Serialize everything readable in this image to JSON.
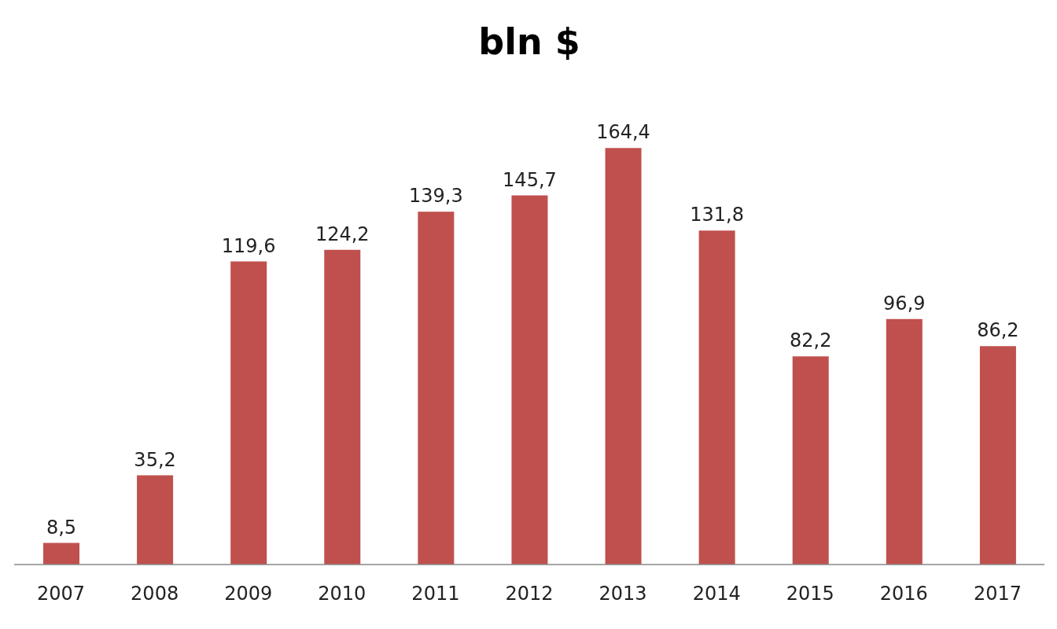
{
  "chart_data": {
    "type": "bar",
    "title": "bln $",
    "categories": [
      "2007",
      "2008",
      "2009",
      "2010",
      "2011",
      "2012",
      "2013",
      "2014",
      "2015",
      "2016",
      "2017"
    ],
    "values": [
      8.5,
      35.2,
      119.6,
      124.2,
      139.3,
      145.7,
      164.4,
      131.8,
      82.2,
      96.9,
      86.2
    ],
    "value_labels": [
      "8,5",
      "35,2",
      "119,6",
      "124,2",
      "139,3",
      "145,7",
      "164,4",
      "131,8",
      "82,2",
      "96,9",
      "86,2"
    ],
    "color": "#c0504d",
    "grid": false,
    "legend": false
  }
}
